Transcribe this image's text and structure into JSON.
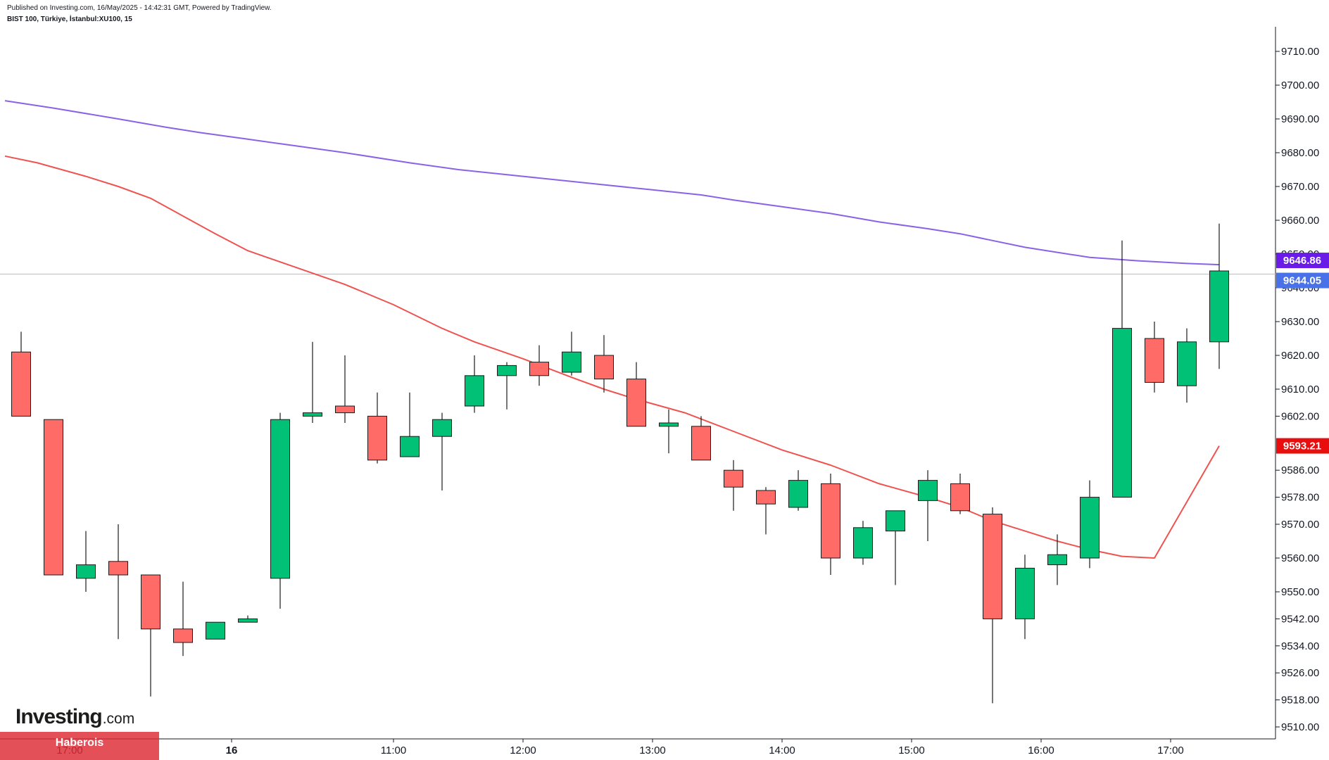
{
  "header": {
    "published": "Published on Investing.com, 16/May/2025 - 14:42:31 GMT, Powered by TradingView.",
    "symbol": "BIST 100, Türkiye, İstanbul:XU100, 15"
  },
  "logo": {
    "word": "Investing",
    "suffix": ".com"
  },
  "source_label": "Haberois",
  "colors": {
    "up": "#00c176",
    "down": "#ff6b66",
    "candle_border": "#1a1a1a",
    "wick": "#1a1a1a",
    "ma_long": "#8a62e6",
    "ma_short": "#ef5350",
    "last_price_line": "#b8b6f0",
    "badge_ma_long": "#6a1be8",
    "badge_last": "#4a72e8",
    "badge_ma_short": "#e80e0e"
  },
  "chart_data": {
    "type": "candlestick",
    "interval": "15",
    "ylim": [
      9505,
      9717
    ],
    "y_ticks": [
      {
        "value": 9710,
        "label": "9710.00"
      },
      {
        "value": 9700,
        "label": "9700.00"
      },
      {
        "value": 9690,
        "label": "9690.00"
      },
      {
        "value": 9680,
        "label": "9680.00"
      },
      {
        "value": 9670,
        "label": "9670.00"
      },
      {
        "value": 9660,
        "label": "9660.00"
      },
      {
        "value": 9650,
        "label": "9650.00"
      },
      {
        "value": 9640,
        "label": "9640.00"
      },
      {
        "value": 9630,
        "label": "9630.00"
      },
      {
        "value": 9620,
        "label": "9620.00"
      },
      {
        "value": 9610,
        "label": "9610.00"
      },
      {
        "value": 9602,
        "label": "9602.00"
      },
      {
        "value": 9586,
        "label": "9586.00"
      },
      {
        "value": 9578,
        "label": "9578.00"
      },
      {
        "value": 9570,
        "label": "9570.00"
      },
      {
        "value": 9560,
        "label": "9560.00"
      },
      {
        "value": 9550,
        "label": "9550.00"
      },
      {
        "value": 9542,
        "label": "9542.00"
      },
      {
        "value": 9534,
        "label": "9534.00"
      },
      {
        "value": 9526,
        "label": "9526.00"
      },
      {
        "value": 9518,
        "label": "9518.00"
      },
      {
        "value": 9510,
        "label": "9510.00"
      }
    ],
    "x_ticks": [
      {
        "index": 2,
        "label": "17:00",
        "bold": false
      },
      {
        "index": 7,
        "label": "16",
        "bold": true
      },
      {
        "index": 12,
        "label": "11:00",
        "bold": false
      },
      {
        "index": 16,
        "label": "12:00",
        "bold": false
      },
      {
        "index": 20,
        "label": "13:00",
        "bold": false
      },
      {
        "index": 24,
        "label": "14:00",
        "bold": false
      },
      {
        "index": 28,
        "label": "15:00",
        "bold": false
      },
      {
        "index": 32,
        "label": "16:00",
        "bold": false
      },
      {
        "index": 36,
        "label": "17:00",
        "bold": false
      }
    ],
    "candles": [
      {
        "o": 9621,
        "h": 9627,
        "l": 9602,
        "c": 9602
      },
      {
        "o": 9601,
        "h": 9601,
        "l": 9555,
        "c": 9555
      },
      {
        "o": 9554,
        "h": 9568,
        "l": 9550,
        "c": 9558
      },
      {
        "o": 9559,
        "h": 9570,
        "l": 9536,
        "c": 9555
      },
      {
        "o": 9555,
        "h": 9555,
        "l": 9519,
        "c": 9539
      },
      {
        "o": 9539,
        "h": 9553,
        "l": 9531,
        "c": 9535
      },
      {
        "o": 9536,
        "h": 9541,
        "l": 9536,
        "c": 9541
      },
      {
        "o": 9541,
        "h": 9543,
        "l": 9541,
        "c": 9542
      },
      {
        "o": 9554,
        "h": 9603,
        "l": 9545,
        "c": 9601
      },
      {
        "o": 9602,
        "h": 9624,
        "l": 9600,
        "c": 9603
      },
      {
        "o": 9605,
        "h": 9620,
        "l": 9600,
        "c": 9603
      },
      {
        "o": 9602,
        "h": 9609,
        "l": 9588,
        "c": 9589
      },
      {
        "o": 9590,
        "h": 9609,
        "l": 9590,
        "c": 9596
      },
      {
        "o": 9596,
        "h": 9603,
        "l": 9580,
        "c": 9601
      },
      {
        "o": 9605,
        "h": 9620,
        "l": 9603,
        "c": 9614
      },
      {
        "o": 9614,
        "h": 9618,
        "l": 9604,
        "c": 9617
      },
      {
        "o": 9618,
        "h": 9623,
        "l": 9611,
        "c": 9614
      },
      {
        "o": 9615,
        "h": 9627,
        "l": 9614,
        "c": 9621
      },
      {
        "o": 9620,
        "h": 9626,
        "l": 9609,
        "c": 9613
      },
      {
        "o": 9613,
        "h": 9618,
        "l": 9599,
        "c": 9599
      },
      {
        "o": 9599,
        "h": 9604,
        "l": 9591,
        "c": 9600
      },
      {
        "o": 9599,
        "h": 9602,
        "l": 9589,
        "c": 9589
      },
      {
        "o": 9586,
        "h": 9589,
        "l": 9574,
        "c": 9581
      },
      {
        "o": 9580,
        "h": 9581,
        "l": 9567,
        "c": 9576
      },
      {
        "o": 9575,
        "h": 9586,
        "l": 9574,
        "c": 9583
      },
      {
        "o": 9582,
        "h": 9585,
        "l": 9555,
        "c": 9560
      },
      {
        "o": 9560,
        "h": 9571,
        "l": 9558,
        "c": 9569
      },
      {
        "o": 9568,
        "h": 9574,
        "l": 9552,
        "c": 9574
      },
      {
        "o": 9577,
        "h": 9586,
        "l": 9565,
        "c": 9583
      },
      {
        "o": 9582,
        "h": 9585,
        "l": 9573,
        "c": 9574
      },
      {
        "o": 9573,
        "h": 9575,
        "l": 9517,
        "c": 9542
      },
      {
        "o": 9542,
        "h": 9561,
        "l": 9536,
        "c": 9557
      },
      {
        "o": 9558,
        "h": 9567,
        "l": 9552,
        "c": 9561
      },
      {
        "o": 9560,
        "h": 9583,
        "l": 9557,
        "c": 9578
      },
      {
        "o": 9578,
        "h": 9654,
        "l": 9578,
        "c": 9628
      },
      {
        "o": 9625,
        "h": 9630,
        "l": 9609,
        "c": 9612
      },
      {
        "o": 9611,
        "h": 9628,
        "l": 9606,
        "c": 9624
      },
      {
        "o": 9624,
        "h": 9659,
        "l": 9616,
        "c": 9645
      }
    ],
    "series": [
      {
        "key": "ma_long",
        "points": [
          [
            -0.5,
            9695.4
          ],
          [
            1,
            9693.2
          ],
          [
            3,
            9690
          ],
          [
            4.5,
            9687.5
          ],
          [
            5.5,
            9686
          ],
          [
            7,
            9684
          ],
          [
            8.5,
            9682
          ],
          [
            10,
            9680
          ],
          [
            12,
            9677
          ],
          [
            13.5,
            9675
          ],
          [
            15.5,
            9673
          ],
          [
            18,
            9670.5
          ],
          [
            19.5,
            9669
          ],
          [
            21,
            9667.5
          ],
          [
            22,
            9666
          ],
          [
            23.5,
            9664
          ],
          [
            25,
            9662
          ],
          [
            26.5,
            9659.5
          ],
          [
            28,
            9657.5
          ],
          [
            29,
            9656
          ],
          [
            30,
            9654
          ],
          [
            31,
            9652
          ],
          [
            32,
            9650.5
          ],
          [
            33,
            9649
          ],
          [
            34.5,
            9648
          ],
          [
            36,
            9647.2
          ],
          [
            37,
            9646.86
          ]
        ]
      },
      {
        "key": "ma_short",
        "points": [
          [
            -0.5,
            9679
          ],
          [
            0.5,
            9677
          ],
          [
            2,
            9673
          ],
          [
            3,
            9670
          ],
          [
            4,
            9666.5
          ],
          [
            6,
            9656
          ],
          [
            7,
            9651
          ],
          [
            8.5,
            9646
          ],
          [
            10,
            9641
          ],
          [
            11.5,
            9635
          ],
          [
            13,
            9628
          ],
          [
            14,
            9624
          ],
          [
            15.5,
            9619
          ],
          [
            17,
            9613.5
          ],
          [
            18,
            9610
          ],
          [
            19,
            9607
          ],
          [
            20.5,
            9603
          ],
          [
            22,
            9597.5
          ],
          [
            23.5,
            9592
          ],
          [
            25,
            9587.5
          ],
          [
            26.5,
            9582
          ],
          [
            28,
            9578
          ],
          [
            29,
            9575
          ],
          [
            30,
            9571
          ],
          [
            31,
            9568
          ],
          [
            32,
            9565
          ],
          [
            33,
            9562.5
          ],
          [
            34,
            9560.5
          ],
          [
            35,
            9560
          ],
          [
            37,
            9593.21
          ]
        ]
      }
    ],
    "last_price": 9644.05,
    "badges": [
      {
        "key": "ma_long",
        "value": 9646.86,
        "label": "9646.86"
      },
      {
        "key": "last",
        "value": 9644.05,
        "label": "9644.05"
      },
      {
        "key": "ma_short",
        "value": 9593.21,
        "label": "9593.21"
      }
    ]
  }
}
